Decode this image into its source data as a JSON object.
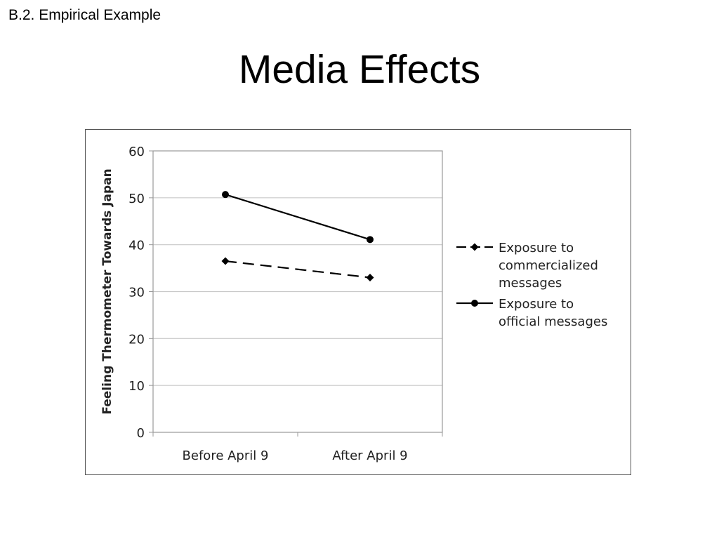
{
  "slide": {
    "section_label": "B.2. Empirical Example",
    "title": "Media Effects"
  },
  "chart_data": {
    "type": "line",
    "title": "",
    "xlabel": "",
    "ylabel": "Feeling Thermometer Towards Japan",
    "categories": [
      "Before April 9",
      "After April 9"
    ],
    "ylim": [
      0,
      60
    ],
    "yticks": [
      0,
      10,
      20,
      30,
      40,
      50,
      60
    ],
    "grid": true,
    "legend_position": "right",
    "series": [
      {
        "name": "Exposure to commercialized messages",
        "legend_lines": [
          "Exposure to",
          "commercialized",
          "messages"
        ],
        "values": [
          36.5,
          33.0
        ],
        "line_style": "dashed",
        "marker": "diamond",
        "color": "#000000"
      },
      {
        "name": "Exposure to official messages",
        "legend_lines": [
          "Exposure to",
          "official messages"
        ],
        "values": [
          50.7,
          41.1
        ],
        "line_style": "solid",
        "marker": "circle",
        "color": "#000000"
      }
    ]
  }
}
